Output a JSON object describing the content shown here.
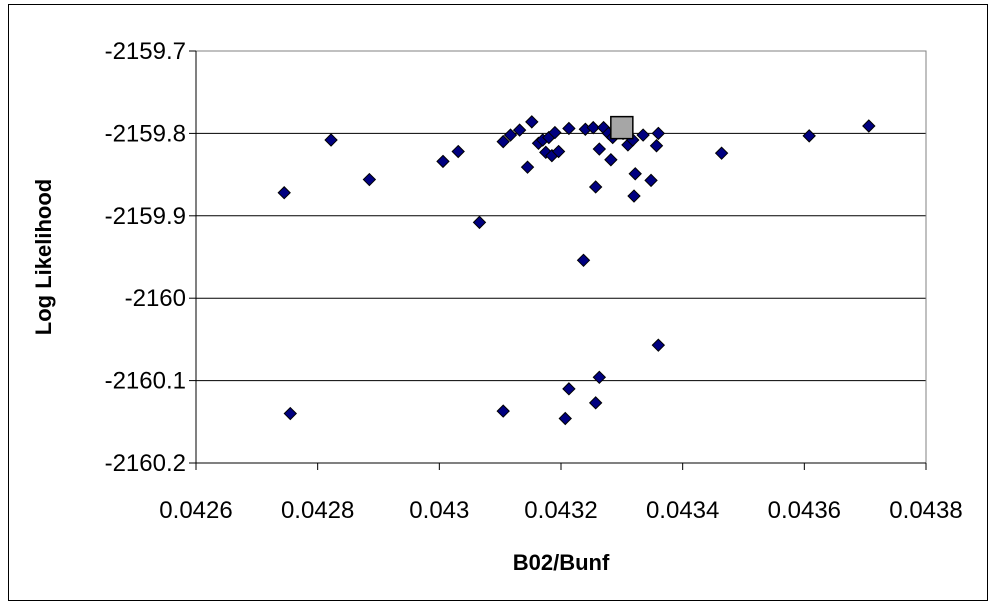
{
  "chart_data": {
    "type": "scatter",
    "xlabel": "B02/Bunf",
    "ylabel": "Log Likelihood",
    "xlim": [
      0.0426,
      0.0438
    ],
    "ylim": [
      -2160.2,
      -2159.7
    ],
    "x_ticks": [
      0.0426,
      0.0428,
      0.043,
      0.0432,
      0.0434,
      0.0436,
      0.0438
    ],
    "x_tick_labels": [
      "0.0426",
      "0.0428",
      "0.043",
      "0.0432",
      "0.0434",
      "0.0436",
      "0.0438"
    ],
    "y_ticks": [
      -2159.7,
      -2159.8,
      -2159.9,
      -2160,
      -2160.1,
      -2160.2
    ],
    "y_tick_labels": [
      "-2159.7",
      "-2159.8",
      "-2159.9",
      "-2160",
      "-2160.1",
      "-2160.2"
    ],
    "grid": "horizontal",
    "legend": "none",
    "series": [
      {
        "marker": "diamond",
        "color": "#000080",
        "points": [
          [
            0.042745,
            -2159.872
          ],
          [
            0.042822,
            -2159.808
          ],
          [
            0.042885,
            -2159.856
          ],
          [
            0.043006,
            -2159.834
          ],
          [
            0.043031,
            -2159.822
          ],
          [
            0.043066,
            -2159.908
          ],
          [
            0.043105,
            -2159.81
          ],
          [
            0.043117,
            -2159.802
          ],
          [
            0.043132,
            -2159.796
          ],
          [
            0.043145,
            -2159.841
          ],
          [
            0.043152,
            -2159.786
          ],
          [
            0.043163,
            -2159.812
          ],
          [
            0.04317,
            -2159.808
          ],
          [
            0.043175,
            -2159.823
          ],
          [
            0.04318,
            -2159.805
          ],
          [
            0.043185,
            -2159.827
          ],
          [
            0.04319,
            -2159.799
          ],
          [
            0.043196,
            -2159.822
          ],
          [
            0.043213,
            -2159.794
          ],
          [
            0.043237,
            -2159.954
          ],
          [
            0.04324,
            -2159.795
          ],
          [
            0.043253,
            -2159.793
          ],
          [
            0.043257,
            -2159.865
          ],
          [
            0.043263,
            -2159.819
          ],
          [
            0.04327,
            -2159.793
          ],
          [
            0.043278,
            -2159.8
          ],
          [
            0.043282,
            -2159.832
          ],
          [
            0.043285,
            -2159.805
          ],
          [
            0.043302,
            -2159.8
          ],
          [
            0.04331,
            -2159.814
          ],
          [
            0.043318,
            -2159.808
          ],
          [
            0.04332,
            -2159.876
          ],
          [
            0.043322,
            -2159.849
          ],
          [
            0.043335,
            -2159.802
          ],
          [
            0.043348,
            -2159.857
          ],
          [
            0.043357,
            -2159.815
          ],
          [
            0.04336,
            -2159.8
          ],
          [
            0.043464,
            -2159.824
          ],
          [
            0.043608,
            -2159.803
          ],
          [
            0.043706,
            -2159.791
          ],
          [
            0.04336,
            -2160.057
          ],
          [
            0.043263,
            -2160.096
          ],
          [
            0.043213,
            -2160.11
          ],
          [
            0.043257,
            -2160.127
          ],
          [
            0.043105,
            -2160.137
          ],
          [
            0.042755,
            -2160.14
          ],
          [
            0.043207,
            -2160.146
          ]
        ]
      },
      {
        "marker": "square",
        "color": "#a6a6a6",
        "points": [
          [
            0.0433,
            -2159.793
          ]
        ]
      }
    ]
  }
}
